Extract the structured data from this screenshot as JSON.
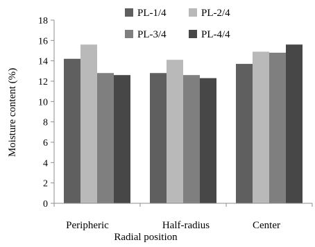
{
  "chart_data": {
    "type": "bar",
    "categories": [
      "Peripheric",
      "Half-radius",
      "Center"
    ],
    "series": [
      {
        "name": "PL-1/4",
        "values": [
          14.2,
          12.8,
          13.7
        ],
        "color": "#5f5f5f"
      },
      {
        "name": "PL-2/4",
        "values": [
          15.6,
          14.1,
          14.9
        ],
        "color": "#b9b9b9"
      },
      {
        "name": "PL-3/4",
        "values": [
          12.8,
          12.6,
          14.8
        ],
        "color": "#7f7f7f"
      },
      {
        "name": "PL-4/4",
        "values": [
          12.6,
          12.3,
          15.6
        ],
        "color": "#474747"
      }
    ],
    "title": "",
    "xlabel": "Radial position",
    "ylabel": "Moisture content (%)",
    "ylim": [
      0,
      18
    ],
    "yticks": [
      0,
      2,
      4,
      6,
      8,
      10,
      12,
      14,
      16,
      18
    ],
    "grid": false,
    "legend_position": "top",
    "axis_color": "#8c8c8c"
  }
}
